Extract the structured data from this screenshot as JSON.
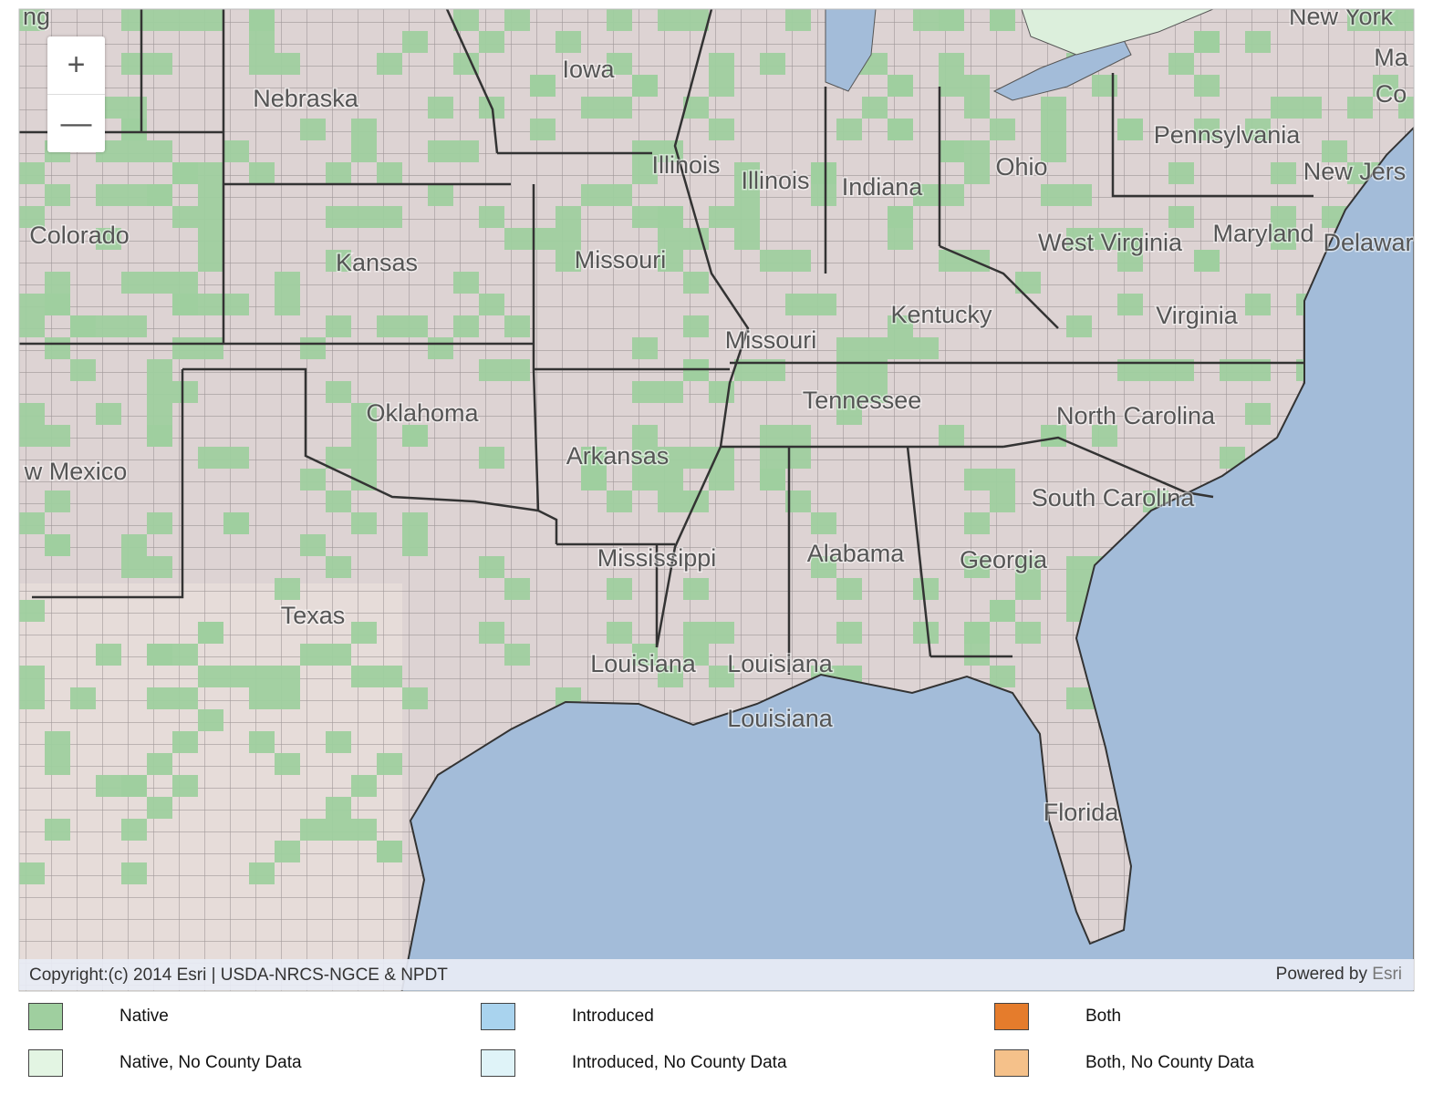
{
  "map": {
    "zoom_in": "+",
    "zoom_out": "—",
    "labels": [
      "ng",
      "Nebraska",
      "Iowa",
      "New York",
      "Ma",
      "Co",
      "Pennsylvania",
      "Ohio",
      "Indiana",
      "Illinois",
      "Illinois",
      "Colorado",
      "Kansas",
      "Missouri",
      "New Jers",
      "West Virginia",
      "Maryland",
      "Delawar",
      "Kentucky",
      "Virginia",
      "Missouri",
      "Oklahoma",
      "Tennessee",
      "North Carolina",
      "w Mexico",
      "Arkansas",
      "South Carolina",
      "Mississippi",
      "Alabama",
      "Georgia",
      "Texas",
      "Louisiana",
      "Louisiana",
      "Louisiana",
      "Florida"
    ],
    "attribution": "Copyright:(c) 2014 Esri | USDA-NRCS-NGCE & NPDT",
    "powered_by": "Powered by",
    "esri": "Esri"
  },
  "legend": [
    {
      "label": "Native",
      "color": "#9fcf9f"
    },
    {
      "label": "Introduced",
      "color": "#a9d3ee"
    },
    {
      "label": "Both",
      "color": "#e57c2c"
    },
    {
      "label": "Native, No County Data",
      "color": "#e3f5e3"
    },
    {
      "label": "Introduced, No County Data",
      "color": "#dff3f8"
    },
    {
      "label": "Both, No County Data",
      "color": "#f5c18a"
    }
  ]
}
